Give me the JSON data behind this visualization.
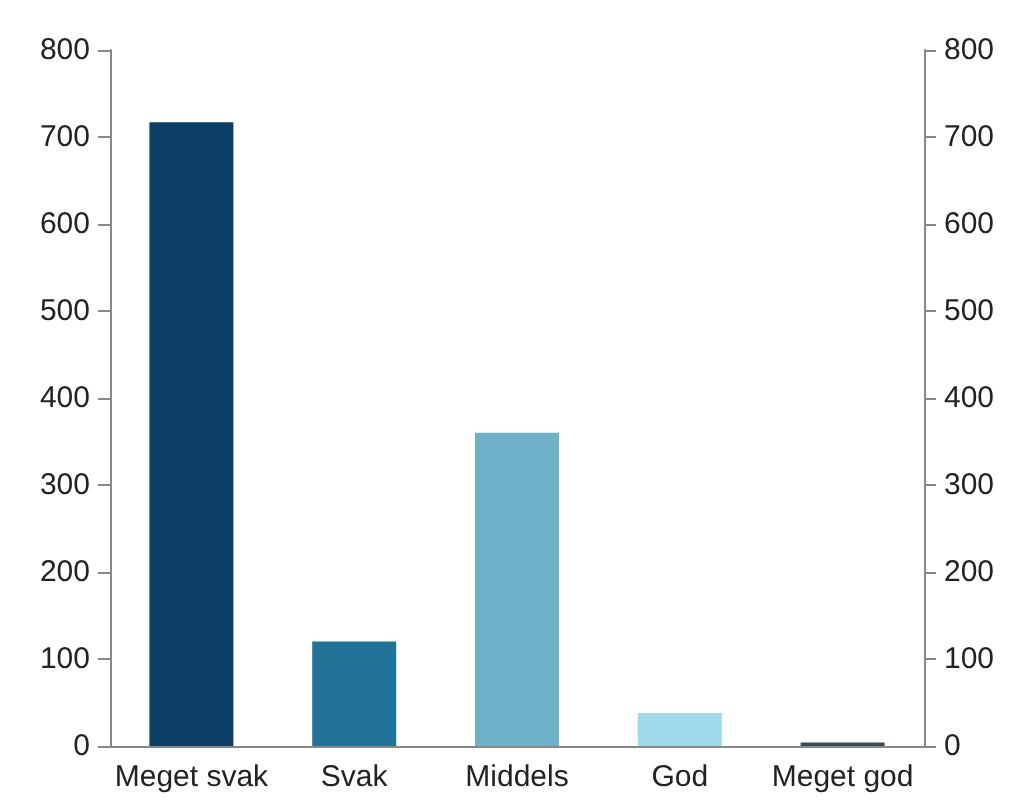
{
  "chart_data": {
    "type": "bar",
    "categories": [
      "Meget svak",
      "Svak",
      "Middels",
      "God",
      "Meget god"
    ],
    "values": [
      717,
      120,
      360,
      38,
      4
    ],
    "colors": [
      "#0b3f66",
      "#237399",
      "#6fb1c8",
      "#a0d9ea",
      "#3b4a55"
    ],
    "ylim": [
      0,
      800
    ],
    "yticks": [
      0,
      100,
      200,
      300,
      400,
      500,
      600,
      700,
      800
    ],
    "y2lim": [
      0,
      800
    ],
    "y2ticks": [
      0,
      100,
      200,
      300,
      400,
      500,
      600,
      700,
      800
    ]
  }
}
